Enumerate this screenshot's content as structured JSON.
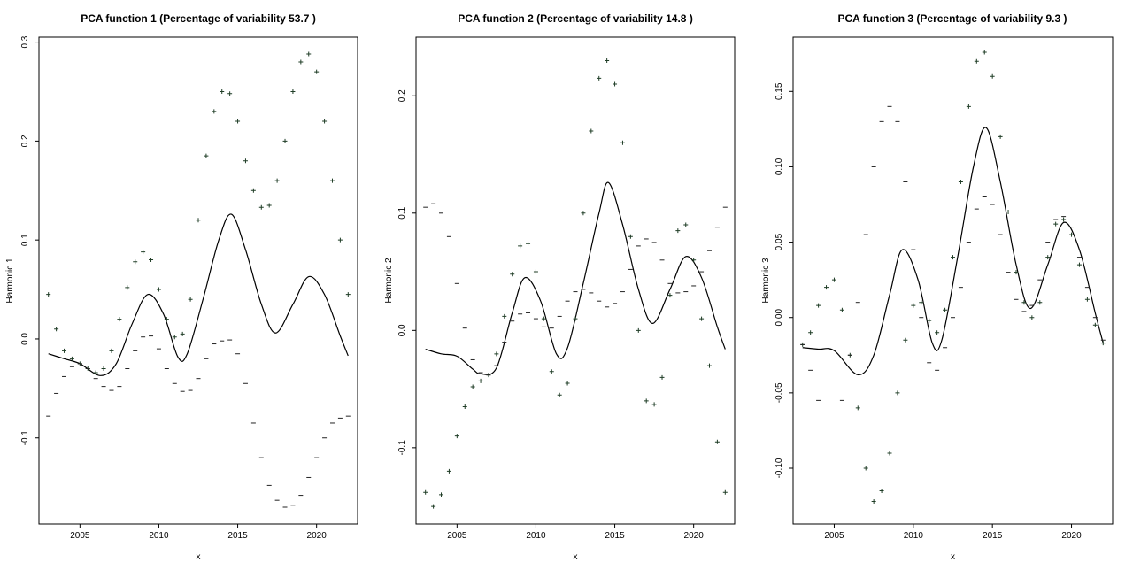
{
  "colors": {
    "ink": "#000000",
    "plus_marks": "#1f3d26",
    "minus_marks": "#222222"
  },
  "chart_data": [
    {
      "type": "line",
      "title": "PCA function 1 (Percentage of variability 53.7 )",
      "xlabel": "x",
      "ylabel": "Harmonic 1",
      "xlim": [
        2002.4,
        2022.6
      ],
      "ylim": [
        -0.187,
        0.305
      ],
      "xticks": [
        2005,
        2010,
        2015,
        2020
      ],
      "yticks": [
        -0.1,
        0.0,
        0.1,
        0.2,
        0.3
      ],
      "ytick_labels": [
        "-0.1",
        "0.0",
        "0.1",
        "0.2",
        "0.3"
      ],
      "grid": false,
      "series": [
        {
          "style": "line",
          "x": [
            2003.0,
            2004.0,
            2005.0,
            2006.3,
            2007.3,
            2008.3,
            2009.3,
            2010.3,
            2011.2,
            2011.8,
            2012.8,
            2013.8,
            2014.6,
            2015.5,
            2016.5,
            2017.4,
            2018.5,
            2019.5,
            2020.5,
            2021.5,
            2022.0
          ],
          "y": [
            -0.015,
            -0.02,
            -0.025,
            -0.037,
            -0.025,
            0.015,
            0.045,
            0.025,
            -0.018,
            -0.015,
            0.04,
            0.1,
            0.126,
            0.09,
            0.035,
            0.006,
            0.035,
            0.063,
            0.045,
            0.003,
            -0.017
          ]
        },
        {
          "style": "plus",
          "x": [
            2003.0,
            2003.5,
            2004.0,
            2004.5,
            2005.0,
            2005.5,
            2006.0,
            2006.5,
            2007.0,
            2007.5,
            2008.0,
            2008.5,
            2009.0,
            2009.5,
            2010.0,
            2010.5,
            2011.0,
            2011.5,
            2012.0,
            2012.5,
            2013.0,
            2013.5,
            2014.0,
            2014.5,
            2015.0,
            2015.5,
            2016.0,
            2016.5,
            2017.0,
            2017.5,
            2018.0,
            2018.5,
            2019.0,
            2019.5,
            2020.0,
            2020.5,
            2021.0,
            2021.5,
            2022.0
          ],
          "y": [
            0.045,
            0.01,
            -0.012,
            -0.02,
            -0.025,
            -0.03,
            -0.034,
            -0.03,
            -0.012,
            0.02,
            0.052,
            0.078,
            0.088,
            0.08,
            0.05,
            0.02,
            0.002,
            0.005,
            0.04,
            0.12,
            0.185,
            0.23,
            0.25,
            0.248,
            0.22,
            0.18,
            0.15,
            0.133,
            0.135,
            0.16,
            0.2,
            0.25,
            0.28,
            0.288,
            0.27,
            0.22,
            0.16,
            0.1,
            0.045
          ]
        },
        {
          "style": "minus",
          "x": [
            2003.0,
            2003.5,
            2004.0,
            2004.5,
            2005.0,
            2005.5,
            2006.0,
            2006.5,
            2007.0,
            2007.5,
            2008.0,
            2008.5,
            2009.0,
            2009.5,
            2010.0,
            2010.5,
            2011.0,
            2011.5,
            2012.0,
            2012.5,
            2013.0,
            2013.5,
            2014.0,
            2014.5,
            2015.0,
            2015.5,
            2016.0,
            2016.5,
            2017.0,
            2017.5,
            2018.0,
            2018.5,
            2019.0,
            2019.5,
            2020.0,
            2020.5,
            2021.0,
            2021.5,
            2022.0
          ],
          "y": [
            -0.078,
            -0.055,
            -0.038,
            -0.028,
            -0.025,
            -0.03,
            -0.04,
            -0.048,
            -0.052,
            -0.048,
            -0.03,
            -0.012,
            0.002,
            0.003,
            -0.01,
            -0.03,
            -0.045,
            -0.053,
            -0.052,
            -0.04,
            -0.02,
            -0.005,
            -0.002,
            -0.001,
            -0.015,
            -0.045,
            -0.085,
            -0.12,
            -0.148,
            -0.163,
            -0.17,
            -0.168,
            -0.158,
            -0.14,
            -0.12,
            -0.1,
            -0.085,
            -0.08,
            -0.078
          ]
        }
      ]
    },
    {
      "type": "line",
      "title": "PCA function 2 (Percentage of variability 14.8 )",
      "xlabel": "x",
      "ylabel": "Harmonic 2",
      "xlim": [
        2002.4,
        2022.6
      ],
      "ylim": [
        -0.165,
        0.25
      ],
      "xticks": [
        2005,
        2010,
        2015,
        2020
      ],
      "yticks": [
        -0.1,
        0.0,
        0.1,
        0.2
      ],
      "ytick_labels": [
        "-0.1",
        "0.0",
        "0.1",
        "0.2"
      ],
      "grid": false,
      "series": [
        {
          "style": "line",
          "x": [
            2003.0,
            2004.0,
            2005.0,
            2006.0,
            2006.5,
            2007.5,
            2008.5,
            2009.3,
            2010.3,
            2011.3,
            2012.0,
            2013.0,
            2014.0,
            2014.6,
            2015.5,
            2016.5,
            2017.4,
            2018.5,
            2019.5,
            2020.5,
            2021.5,
            2022.0
          ],
          "y": [
            -0.016,
            -0.02,
            -0.022,
            -0.033,
            -0.037,
            -0.032,
            0.015,
            0.045,
            0.025,
            -0.02,
            -0.015,
            0.04,
            0.1,
            0.126,
            0.09,
            0.035,
            0.006,
            0.035,
            0.063,
            0.045,
            0.003,
            -0.016
          ]
        },
        {
          "style": "plus",
          "x": [
            2003.0,
            2003.5,
            2004.0,
            2004.5,
            2005.0,
            2005.5,
            2006.0,
            2006.5,
            2007.0,
            2007.5,
            2008.0,
            2008.5,
            2009.0,
            2009.5,
            2010.0,
            2010.5,
            2011.0,
            2011.5,
            2012.0,
            2012.5,
            2013.0,
            2013.5,
            2014.0,
            2014.5,
            2015.0,
            2015.5,
            2016.0,
            2016.5,
            2017.0,
            2017.5,
            2018.0,
            2018.5,
            2019.0,
            2019.5,
            2020.0,
            2020.5,
            2021.0,
            2021.5,
            2022.0
          ],
          "y": [
            -0.138,
            -0.15,
            -0.14,
            -0.12,
            -0.09,
            -0.065,
            -0.048,
            -0.043,
            -0.038,
            -0.02,
            0.012,
            0.048,
            0.072,
            0.074,
            0.05,
            0.01,
            -0.035,
            -0.055,
            -0.045,
            0.01,
            0.1,
            0.17,
            0.215,
            0.23,
            0.21,
            0.16,
            0.08,
            0.0,
            -0.06,
            -0.063,
            -0.04,
            0.03,
            0.085,
            0.09,
            0.06,
            0.01,
            -0.03,
            -0.095,
            -0.138
          ]
        },
        {
          "style": "minus",
          "x": [
            2003.0,
            2003.5,
            2004.0,
            2004.5,
            2005.0,
            2005.5,
            2006.0,
            2006.5,
            2007.0,
            2007.5,
            2008.0,
            2008.5,
            2009.0,
            2009.5,
            2010.0,
            2010.5,
            2011.0,
            2011.5,
            2012.0,
            2012.5,
            2013.0,
            2013.5,
            2014.0,
            2014.5,
            2015.0,
            2015.5,
            2016.0,
            2016.5,
            2017.0,
            2017.5,
            2018.0,
            2018.5,
            2019.0,
            2019.5,
            2020.0,
            2020.5,
            2021.0,
            2021.5,
            2022.0
          ],
          "y": [
            0.105,
            0.108,
            0.1,
            0.08,
            0.04,
            0.002,
            -0.025,
            -0.036,
            -0.038,
            -0.03,
            -0.01,
            0.008,
            0.014,
            0.015,
            0.01,
            0.003,
            0.002,
            0.012,
            0.025,
            0.033,
            0.035,
            0.032,
            0.025,
            0.02,
            0.023,
            0.033,
            0.052,
            0.072,
            0.078,
            0.075,
            0.06,
            0.04,
            0.032,
            0.033,
            0.038,
            0.05,
            0.068,
            0.088,
            0.105
          ]
        }
      ]
    },
    {
      "type": "line",
      "title": "PCA function 3 (Percentage of variability 9.3 )",
      "xlabel": "x",
      "ylabel": "Harmonic 3",
      "xlim": [
        2002.4,
        2022.6
      ],
      "ylim": [
        -0.137,
        0.186
      ],
      "xticks": [
        2005,
        2010,
        2015,
        2020
      ],
      "yticks": [
        -0.1,
        -0.05,
        0.0,
        0.05,
        0.1,
        0.15
      ],
      "ytick_labels": [
        "-0.10",
        "-0.05",
        "0.00",
        "0.05",
        "0.10",
        "0.15"
      ],
      "grid": false,
      "series": [
        {
          "style": "line",
          "x": [
            2003.0,
            2004.0,
            2005.0,
            2006.5,
            2007.5,
            2008.5,
            2009.3,
            2010.3,
            2011.2,
            2011.8,
            2012.8,
            2013.8,
            2014.6,
            2015.5,
            2016.5,
            2017.4,
            2018.5,
            2019.5,
            2020.5,
            2021.5,
            2022.0
          ],
          "y": [
            -0.02,
            -0.021,
            -0.022,
            -0.038,
            -0.025,
            0.015,
            0.045,
            0.025,
            -0.017,
            -0.015,
            0.04,
            0.1,
            0.126,
            0.09,
            0.035,
            0.006,
            0.035,
            0.063,
            0.045,
            0.003,
            -0.017
          ]
        },
        {
          "style": "plus",
          "x": [
            2003.0,
            2003.5,
            2004.0,
            2004.5,
            2005.0,
            2005.5,
            2006.0,
            2006.5,
            2007.0,
            2007.5,
            2008.0,
            2008.5,
            2009.0,
            2009.5,
            2010.0,
            2010.5,
            2011.0,
            2011.5,
            2012.0,
            2012.5,
            2013.0,
            2013.5,
            2014.0,
            2014.5,
            2015.0,
            2015.5,
            2016.0,
            2016.5,
            2017.0,
            2017.5,
            2018.0,
            2018.5,
            2019.0,
            2019.5,
            2020.0,
            2020.5,
            2021.0,
            2021.5,
            2022.0
          ],
          "y": [
            -0.018,
            -0.01,
            0.008,
            0.02,
            0.025,
            0.005,
            -0.025,
            -0.06,
            -0.1,
            -0.122,
            -0.115,
            -0.09,
            -0.05,
            -0.015,
            0.008,
            0.01,
            -0.002,
            -0.01,
            0.005,
            0.04,
            0.09,
            0.14,
            0.17,
            0.176,
            0.16,
            0.12,
            0.07,
            0.03,
            0.01,
            0.0,
            0.01,
            0.04,
            0.062,
            0.065,
            0.055,
            0.035,
            0.012,
            -0.005,
            -0.017
          ]
        },
        {
          "style": "minus",
          "x": [
            2003.0,
            2003.5,
            2004.0,
            2004.5,
            2005.0,
            2005.5,
            2006.0,
            2006.5,
            2007.0,
            2007.5,
            2008.0,
            2008.5,
            2009.0,
            2009.5,
            2010.0,
            2010.5,
            2011.0,
            2011.5,
            2012.0,
            2012.5,
            2013.0,
            2013.5,
            2014.0,
            2014.5,
            2015.0,
            2015.5,
            2016.0,
            2016.5,
            2017.0,
            2017.5,
            2018.0,
            2018.5,
            2019.0,
            2019.5,
            2020.0,
            2020.5,
            2021.0,
            2021.5,
            2022.0
          ],
          "y": [
            -0.018,
            -0.035,
            -0.055,
            -0.068,
            -0.068,
            -0.055,
            -0.025,
            0.01,
            0.055,
            0.1,
            0.13,
            0.14,
            0.13,
            0.09,
            0.045,
            0.0,
            -0.03,
            -0.035,
            -0.02,
            0.0,
            0.02,
            0.05,
            0.072,
            0.08,
            0.075,
            0.055,
            0.03,
            0.012,
            0.004,
            0.008,
            0.025,
            0.05,
            0.065,
            0.067,
            0.06,
            0.04,
            0.02,
            0.0,
            -0.015
          ]
        }
      ]
    }
  ]
}
